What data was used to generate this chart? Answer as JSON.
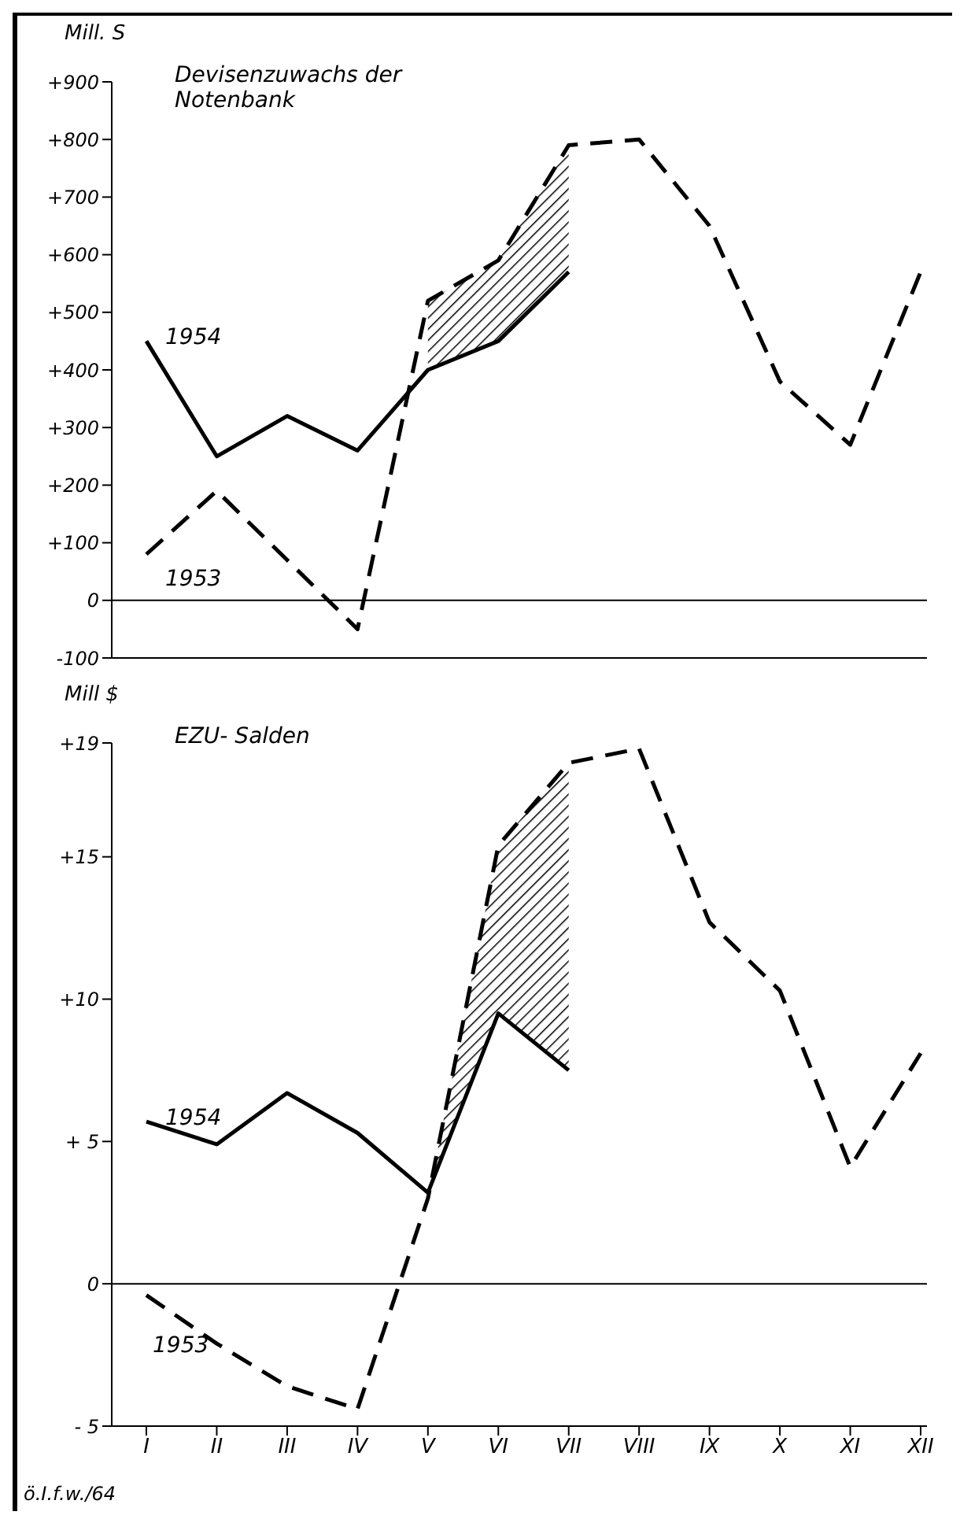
{
  "chart_data": [
    {
      "type": "line",
      "title": "Devisenzuwachs der Notenbank",
      "ylabel": "Mill. S",
      "categories": [
        null,
        null,
        null,
        null,
        null,
        null,
        null,
        null,
        null,
        null,
        null,
        null
      ],
      "ylim": [
        -100,
        900
      ],
      "yticks": [
        {
          "value": -100,
          "label": "-100"
        },
        0,
        {
          "value": 100,
          "label": "+100"
        },
        {
          "value": 200,
          "label": "+200"
        },
        {
          "value": 300,
          "label": "+300"
        },
        {
          "value": 400,
          "label": "+400"
        },
        {
          "value": 500,
          "label": "+500"
        },
        {
          "value": 600,
          "label": "+600"
        },
        {
          "value": 700,
          "label": "+700"
        },
        {
          "value": 800,
          "label": "+800"
        },
        {
          "value": 900,
          "label": "+900"
        }
      ],
      "tick_labels": "y",
      "grid": false,
      "legend": false,
      "ref_lines": [
        {
          "axis": "y",
          "value": 0,
          "color": "#000000"
        }
      ],
      "series": [
        {
          "name": "1954",
          "color": "#000000",
          "line_style": "solid",
          "values": [
            450,
            250,
            320,
            260,
            400,
            450,
            570,
            null,
            null,
            null,
            null,
            null
          ]
        },
        {
          "name": "1953",
          "color": "#000000",
          "line_style": "dashed",
          "values": [
            80,
            190,
            70,
            -50,
            520,
            590,
            790,
            800,
            650,
            380,
            270,
            570
          ],
          "lower": [
            null,
            null,
            null,
            null,
            400,
            450,
            570,
            null,
            null,
            null,
            null,
            null
          ],
          "upper": [
            null,
            null,
            null,
            null,
            520,
            590,
            790,
            null,
            null,
            null,
            null,
            null
          ]
        }
      ]
    },
    {
      "type": "line",
      "title": "EZU- Salden",
      "ylabel": "Mill $",
      "categories": [
        "I",
        "II",
        "III",
        "IV",
        "V",
        "VI",
        "VII",
        "VIII",
        "IX",
        "X",
        "XI",
        "XII"
      ],
      "ylim": [
        -5,
        19
      ],
      "yticks": [
        {
          "value": -5,
          "label": "- 5"
        },
        0,
        {
          "value": 5,
          "label": "+ 5"
        },
        {
          "value": 10,
          "label": "+10"
        },
        {
          "value": 15,
          "label": "+15"
        },
        {
          "value": 19,
          "label": "+19"
        }
      ],
      "grid": false,
      "legend": false,
      "ref_lines": [
        {
          "axis": "y",
          "value": 0,
          "color": "#000000"
        }
      ],
      "annotations": [
        "ö.I.f.w./64"
      ],
      "series": [
        {
          "name": "1954",
          "color": "#000000",
          "line_style": "solid",
          "values": [
            5.7,
            4.9,
            6.7,
            5.3,
            3.2,
            9.5,
            7.5,
            null,
            null,
            null,
            null,
            null
          ]
        },
        {
          "name": "1953",
          "color": "#000000",
          "line_style": "dashed",
          "values": [
            -0.4,
            -2.1,
            -3.6,
            -4.4,
            3.0,
            15.4,
            18.3,
            18.8,
            12.7,
            10.3,
            4.1,
            8.1
          ],
          "lower": [
            null,
            null,
            null,
            null,
            3.2,
            9.5,
            7.5,
            null,
            null,
            null,
            null,
            null
          ],
          "upper": [
            null,
            null,
            null,
            null,
            3.0,
            15.4,
            18.3,
            null,
            null,
            null,
            null,
            null
          ]
        }
      ]
    }
  ]
}
